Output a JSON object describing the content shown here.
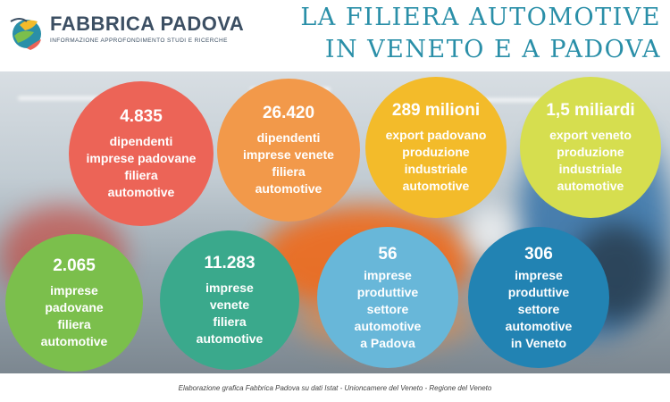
{
  "brand": {
    "name": "FABBRICA PADOVA",
    "tagline": "INFORMAZIONE APPROFONDIMENTO STUDI E RICERCHE"
  },
  "title": {
    "line1": "LA FILIERA AUTOMOTIVE",
    "line2": "IN VENETO E A PADOVA"
  },
  "stats": [
    {
      "number": "4.835",
      "label_lines": [
        "dipendenti",
        "imprese padovane",
        "filiera",
        "automotive"
      ],
      "color": "#ec6457"
    },
    {
      "number": "26.420",
      "label_lines": [
        "dipendenti",
        "imprese venete",
        "filiera",
        "automotive"
      ],
      "color": "#f2994a"
    },
    {
      "number": "289 milioni",
      "label_lines": [
        "export padovano",
        "produzione",
        "industriale",
        "automotive"
      ],
      "color": "#f3bb2a"
    },
    {
      "number": "1,5 miliardi",
      "label_lines": [
        "export veneto",
        "produzione",
        "industriale",
        "automotive"
      ],
      "color": "#d6de4f"
    },
    {
      "number": "2.065",
      "label_lines": [
        "imprese",
        "padovane",
        "filiera",
        "automotive"
      ],
      "color": "#7bbf4c"
    },
    {
      "number": "11.283",
      "label_lines": [
        "imprese",
        "venete",
        "filiera",
        "automotive"
      ],
      "color": "#3aa98c"
    },
    {
      "number": "56",
      "label_lines": [
        "imprese",
        "produttive",
        "settore",
        "automotive",
        "a Padova"
      ],
      "color": "#68b7d9"
    },
    {
      "number": "306",
      "label_lines": [
        "imprese",
        "produttive",
        "settore",
        "automotive",
        "in Veneto"
      ],
      "color": "#2283b3"
    }
  ],
  "footer": {
    "source": "Elaborazione grafica Fabbrica Padova su dati Istat - Unioncamere del Veneto - Regione del Veneto"
  },
  "icons": {
    "logo": "globe-leaf-icon"
  }
}
